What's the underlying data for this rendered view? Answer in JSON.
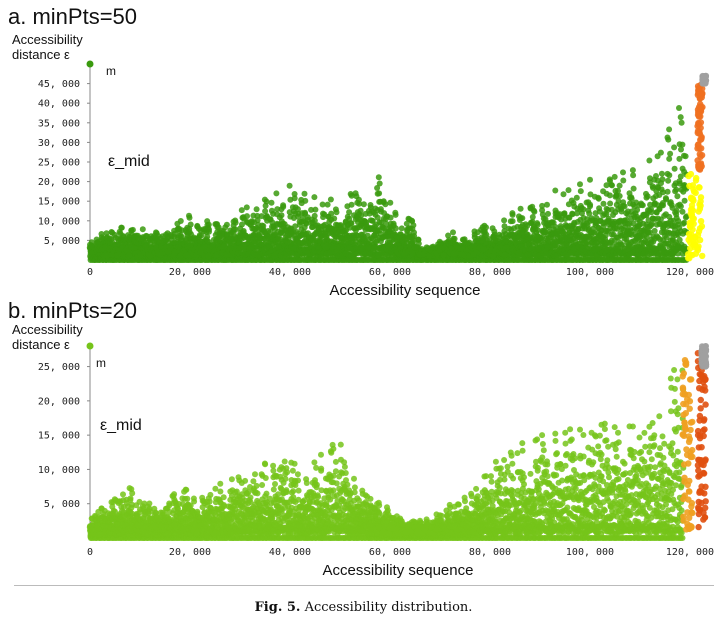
{
  "figure": {
    "caption_prefix": "Fig. 5.",
    "caption_text": "Accessibility distribution."
  },
  "chart_data": [
    {
      "type": "scatter",
      "title": "a. minPts=50",
      "ylabel_line1": "Accessibility",
      "ylabel_line2": "distance ε",
      "unit_label": "m",
      "annotation": "ε_mid",
      "xlabel": "Accessibility sequence",
      "xlim": [
        0,
        124000
      ],
      "ylim": [
        0,
        50000
      ],
      "x_ticks": [
        0,
        20000,
        40000,
        60000,
        80000,
        100000,
        120000
      ],
      "x_tick_labels": [
        "0",
        "20, 000",
        "40, 000",
        "60, 000",
        "80, 000",
        "100, 000",
        "120, 000"
      ],
      "y_ticks": [
        5000,
        10000,
        15000,
        20000,
        25000,
        30000,
        35000,
        40000,
        45000
      ],
      "y_tick_labels": [
        "5, 000",
        "10, 000",
        "15, 000",
        "20, 000",
        "25, 000",
        "30, 000",
        "35, 000",
        "40, 000",
        "45, 000"
      ],
      "main_color": "#3a9a0e",
      "envelope": [
        [
          0,
          5000
        ],
        [
          2000,
          6500
        ],
        [
          5000,
          8000
        ],
        [
          8000,
          11000
        ],
        [
          12000,
          7000
        ],
        [
          16000,
          8000
        ],
        [
          20000,
          12000
        ],
        [
          24000,
          10000
        ],
        [
          28000,
          13000
        ],
        [
          32000,
          14000
        ],
        [
          36000,
          17000
        ],
        [
          38000,
          18000
        ],
        [
          40000,
          21000
        ],
        [
          42000,
          20000
        ],
        [
          44000,
          16000
        ],
        [
          46000,
          18000
        ],
        [
          48000,
          16000
        ],
        [
          50000,
          13000
        ],
        [
          52000,
          17000
        ],
        [
          54000,
          20000
        ],
        [
          56000,
          18000
        ],
        [
          58000,
          22000
        ],
        [
          60000,
          15000
        ],
        [
          62000,
          10000
        ],
        [
          64000,
          12000
        ],
        [
          66000,
          4000
        ],
        [
          68000,
          3000
        ],
        [
          70000,
          5000
        ],
        [
          72000,
          7000
        ],
        [
          76000,
          8000
        ],
        [
          80000,
          10000
        ],
        [
          84000,
          12000
        ],
        [
          88000,
          15000
        ],
        [
          92000,
          17000
        ],
        [
          96000,
          21000
        ],
        [
          100000,
          22000
        ],
        [
          104000,
          21000
        ],
        [
          108000,
          24000
        ],
        [
          112000,
          26000
        ],
        [
          115000,
          31000
        ],
        [
          117000,
          38000
        ],
        [
          118500,
          46000
        ],
        [
          119200,
          47000
        ]
      ],
      "tail_series": [
        {
          "name": "high",
          "color": "#f07020",
          "x": [
            121500,
            122500
          ],
          "ymin": 23000,
          "ymax": 46000
        },
        {
          "name": "low",
          "color": "#ffff00",
          "x": [
            119600,
            122500
          ],
          "ymin": 0,
          "ymax": 22000
        },
        {
          "name": "top",
          "color": "#a0a0a0",
          "x": [
            122500,
            123200
          ],
          "ymin": 45000,
          "ymax": 47000
        }
      ]
    },
    {
      "type": "scatter",
      "title": "b. minPts=20",
      "ylabel_line1": "Accessibility",
      "ylabel_line2": "distance ε",
      "unit_label": "m",
      "annotation": "ε_mid",
      "xlabel": "Accessibility sequence",
      "xlim": [
        0,
        124000
      ],
      "ylim": [
        0,
        28000
      ],
      "x_ticks": [
        0,
        20000,
        40000,
        60000,
        80000,
        100000,
        120000
      ],
      "x_tick_labels": [
        "0",
        "20, 000",
        "40, 000",
        "60, 000",
        "80, 000",
        "100, 000",
        "120, 000"
      ],
      "y_ticks": [
        5000,
        10000,
        15000,
        20000,
        25000
      ],
      "y_tick_labels": [
        "5, 000",
        "10, 000",
        "15, 000",
        "20, 000",
        "25, 000"
      ],
      "main_color": "#76c41a",
      "envelope": [
        [
          0,
          3000
        ],
        [
          2000,
          4500
        ],
        [
          5000,
          6000
        ],
        [
          8000,
          7500
        ],
        [
          12000,
          5000
        ],
        [
          16000,
          6000
        ],
        [
          20000,
          8000
        ],
        [
          24000,
          7000
        ],
        [
          28000,
          9000
        ],
        [
          32000,
          10500
        ],
        [
          36000,
          11000
        ],
        [
          40000,
          12000
        ],
        [
          44000,
          11000
        ],
        [
          48000,
          14000
        ],
        [
          50000,
          15000
        ],
        [
          52000,
          11000
        ],
        [
          54000,
          8000
        ],
        [
          58000,
          6000
        ],
        [
          60000,
          4000
        ],
        [
          62000,
          3500
        ],
        [
          66000,
          3000
        ],
        [
          68000,
          3000
        ],
        [
          72000,
          5000
        ],
        [
          76000,
          7000
        ],
        [
          80000,
          11000
        ],
        [
          84000,
          13000
        ],
        [
          88000,
          15000
        ],
        [
          92000,
          16000
        ],
        [
          96000,
          17000
        ],
        [
          100000,
          16000
        ],
        [
          104000,
          17000
        ],
        [
          108000,
          18000
        ],
        [
          112000,
          20000
        ],
        [
          115000,
          22000
        ],
        [
          117000,
          26000
        ],
        [
          118500,
          27500
        ]
      ],
      "tail_series": [
        {
          "name": "mid",
          "color": "#f0a020",
          "x": [
            118500,
            120500
          ],
          "ymin": 1000,
          "ymax": 26000
        },
        {
          "name": "high",
          "color": "#e05010",
          "x": [
            121500,
            123200
          ],
          "ymin": 1000,
          "ymax": 27000
        },
        {
          "name": "top",
          "color": "#a0a0a0",
          "x": [
            122300,
            123200
          ],
          "ymin": 25000,
          "ymax": 28000
        }
      ]
    }
  ]
}
